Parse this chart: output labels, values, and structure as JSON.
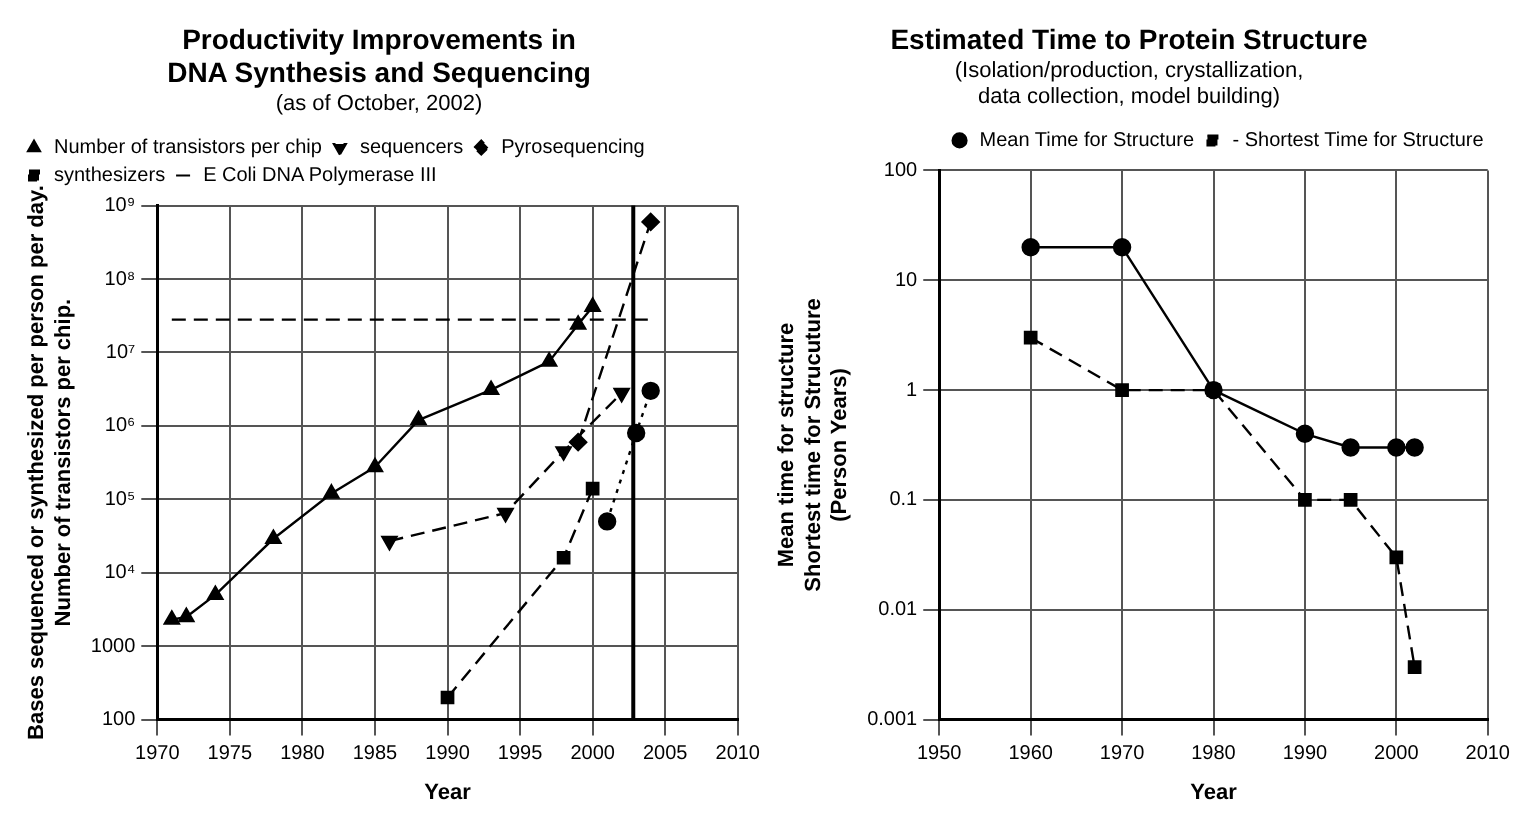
{
  "chart_data": [
    {
      "type": "line",
      "title": "Productivity Improvements in\nDNA Synthesis and Sequencing",
      "subtitle": "(as of October, 2002)",
      "xlabel": "Year",
      "ylabel": "Bases sequenced or synthesized per person per day.\nNumber of transistors per chip.",
      "log": "y",
      "grid": true,
      "legend": "top left",
      "xlim": [
        1970,
        2010
      ],
      "xticks": [
        1970,
        1975,
        1980,
        1985,
        1990,
        1995,
        2000,
        2005,
        2010
      ],
      "ylim": [
        100,
        1000000000
      ],
      "yticks": [
        100,
        1000,
        {
          "value": 10000,
          "label": "10⁴"
        },
        {
          "value": 100000,
          "label": "10⁵"
        },
        {
          "value": 1000000,
          "label": "10⁶"
        },
        {
          "value": 10000000,
          "label": "10⁷"
        },
        {
          "value": 100000000,
          "label": "10⁸"
        },
        {
          "value": 1000000000,
          "label": "10⁹"
        }
      ],
      "ref_lines": [
        {
          "axis": "x",
          "value": 2002.8,
          "label": null,
          "color": "#000000"
        }
      ],
      "series": [
        {
          "name": "Number of transistors per chip",
          "color": "#000000",
          "marker": "triangle",
          "line_style": "solid",
          "x": [
            1971,
            1972,
            1974,
            1978,
            1982,
            1985,
            1988,
            1993,
            1997,
            1999,
            2000
          ],
          "values": [
            2300,
            2500,
            5000,
            29000,
            120000,
            275000,
            1200000,
            3100000,
            7500000,
            24000000,
            42000000
          ]
        },
        {
          "name": "sequencers",
          "color": "#000000",
          "marker": "triangle-down",
          "line_style": "dashed",
          "x": [
            1986,
            1994,
            1998,
            2002
          ],
          "values": [
            27000,
            65000,
            450000,
            2800000
          ]
        },
        {
          "name": "Pyrosequencing",
          "color": "#000000",
          "marker": "diamond",
          "line_style": "dashed",
          "x": [
            1999,
            2004
          ],
          "values": [
            600000,
            600000000
          ]
        },
        {
          "name": "synthesizers",
          "color": "#000000",
          "marker": "square",
          "line_style": "dashed",
          "x": [
            1990,
            1998,
            2000
          ],
          "values": [
            200,
            16000,
            140000
          ]
        },
        {
          "color": "#000000",
          "marker": "circle",
          "line_style": "dotted",
          "x": [
            2001,
            2003,
            2004
          ],
          "values": [
            50000,
            800000,
            3000000
          ]
        },
        {
          "name": "E Coli DNA Polymerase III",
          "color": "#000000",
          "marker": "none",
          "line_style": "dashed",
          "x": [
            1971,
            2004
          ],
          "values": [
            28000000,
            28000000
          ]
        }
      ]
    },
    {
      "type": "line",
      "title": "Estimated Time to Protein Structure",
      "subtitle": "(Isolation/production, crystallization,\ndata collection, model building)",
      "xlabel": "Year",
      "ylabel": "Mean time for structure\nShortest time for Strucuture\n(Person Years)",
      "log": "y",
      "grid": true,
      "legend": "top right",
      "xlim": [
        1950,
        2010
      ],
      "xticks": [
        1950,
        1960,
        1970,
        1980,
        1990,
        2000,
        2010
      ],
      "ylim": [
        0.001,
        100
      ],
      "yticks": [
        0.001,
        0.01,
        0.1,
        1,
        10,
        100
      ],
      "series": [
        {
          "name": "Mean Time for Structure",
          "color": "#000000",
          "marker": "circle",
          "line_style": "solid",
          "x": [
            1960,
            1970,
            1980,
            1990,
            1995,
            2000,
            2002
          ],
          "values": [
            20,
            20,
            1,
            0.4,
            0.3,
            0.3,
            0.3
          ]
        },
        {
          "name": "- Shortest Time for Structure",
          "color": "#000000",
          "marker": "square",
          "line_style": "dashed",
          "x": [
            1960,
            1970,
            1980,
            1990,
            1995,
            2000,
            2002
          ],
          "values": [
            3,
            1,
            1,
            0.1,
            0.1,
            0.03,
            0.003
          ]
        }
      ]
    }
  ]
}
